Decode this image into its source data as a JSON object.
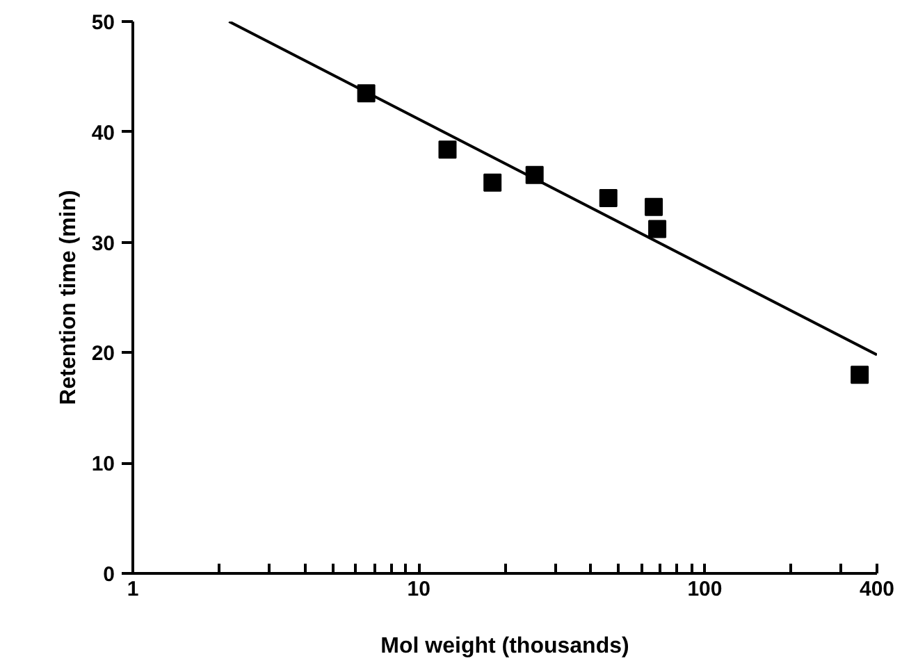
{
  "chart_data": {
    "type": "scatter",
    "xlabel": "Mol weight (thousands)",
    "ylabel": "Retention time (min)",
    "log": "x",
    "marker": "square",
    "grid": false,
    "xlim": [
      1,
      400
    ],
    "ylim": [
      0,
      50
    ],
    "xticks": [
      1,
      {
        "value": 2,
        "label": null
      },
      {
        "value": 3,
        "label": null
      },
      {
        "value": 4,
        "label": null
      },
      {
        "value": 5,
        "label": null
      },
      {
        "value": 6,
        "label": null
      },
      {
        "value": 7,
        "label": null
      },
      {
        "value": 8,
        "label": null
      },
      {
        "value": 9,
        "label": null
      },
      10,
      {
        "value": 20,
        "label": null
      },
      {
        "value": 30,
        "label": null
      },
      {
        "value": 40,
        "label": null
      },
      {
        "value": 50,
        "label": null
      },
      {
        "value": 60,
        "label": null
      },
      {
        "value": 70,
        "label": null
      },
      {
        "value": 80,
        "label": null
      },
      {
        "value": 90,
        "label": null
      },
      100,
      {
        "value": 200,
        "label": null
      },
      {
        "value": 300,
        "label": null
      },
      400
    ],
    "yticks": [
      0,
      10,
      20,
      30,
      40,
      50
    ],
    "series": [
      {
        "color": "#000000",
        "x": [
          6.55,
          12.6,
          18.1,
          25.4,
          46,
          66.3,
          68.2,
          348
        ],
        "values": [
          43.5,
          38.4,
          35.4,
          36.1,
          34.0,
          33.2,
          31.2,
          18.0
        ]
      },
      {
        "type": "line",
        "color": "#000000",
        "marker": "none",
        "x": [
          2.17,
          400
        ],
        "values": [
          50,
          19.8
        ]
      }
    ]
  }
}
